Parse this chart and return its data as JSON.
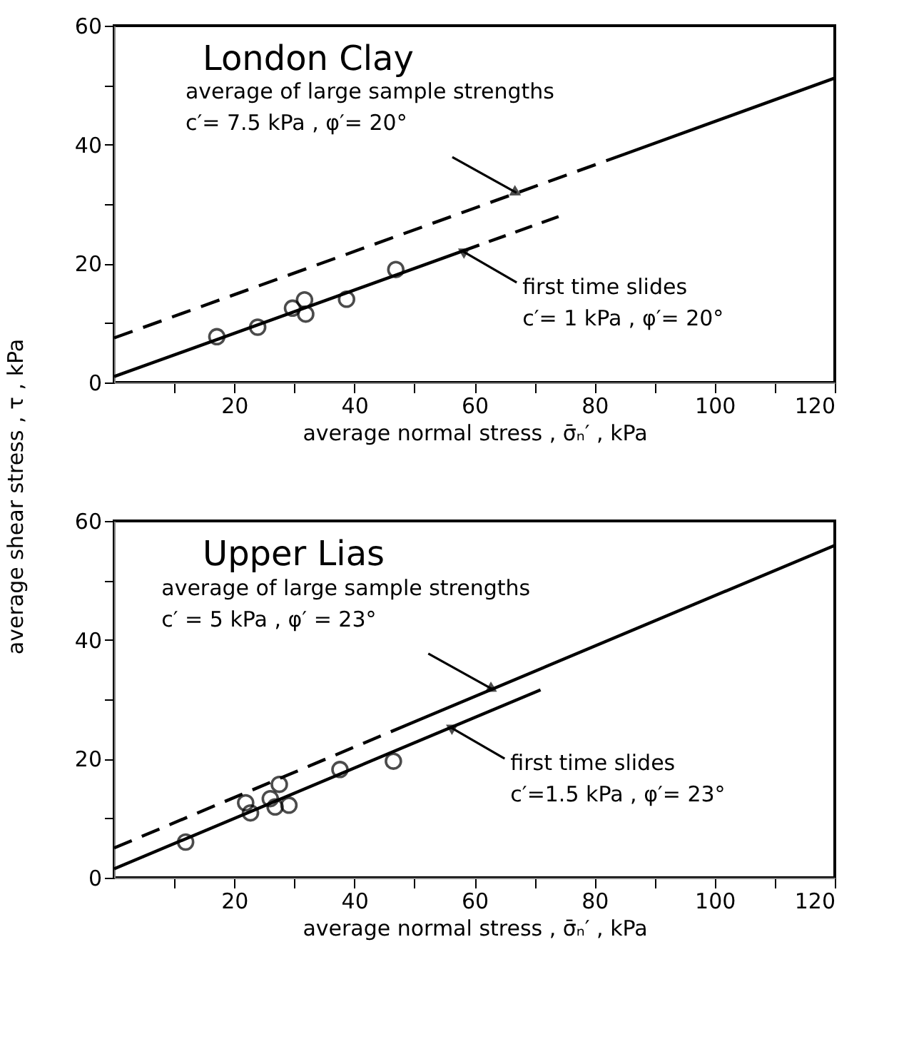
{
  "chart_data": [
    {
      "type": "line",
      "title": "London Clay",
      "xlabel": "average normal stress , σ̄ₙ′ , kPa",
      "ylabel": "average shear stress , τ , kPa",
      "xlim": [
        0,
        120
      ],
      "ylim": [
        0,
        60
      ],
      "xticks": [
        {
          "value": 10,
          "label": null
        },
        20,
        {
          "value": 30,
          "label": null
        },
        40,
        {
          "value": 50,
          "label": null
        },
        60,
        {
          "value": 70,
          "label": null
        },
        80,
        {
          "value": 90,
          "label": null
        },
        100,
        {
          "value": 110,
          "label": null
        },
        120
      ],
      "yticks": [
        0,
        {
          "value": 10,
          "label": null
        },
        20,
        {
          "value": 30,
          "label": null
        },
        40,
        {
          "value": 50,
          "label": null
        },
        60
      ],
      "grid": false,
      "series": [
        {
          "line_style": [
            "dashed",
            "solid"
          ],
          "color": "#000000",
          "x": [
            0,
            85,
            120
          ],
          "values": [
            7.5,
            38.4,
            51.2
          ]
        },
        {
          "line_style": [
            "solid",
            "dashed"
          ],
          "color": "#000000",
          "x": [
            0,
            58,
            74
          ],
          "values": [
            1,
            22.1,
            27.9
          ]
        },
        {
          "type": "scatter",
          "marker": "circle",
          "color": "#000000",
          "x": [
            17.1,
            23.9,
            29.7,
            31.7,
            31.9,
            38.7,
            46.9
          ],
          "values": [
            7.7,
            9.3,
            12.5,
            13.9,
            11.5,
            14.0,
            19.0
          ]
        }
      ],
      "annotations": [
        {
          "text": "average of large sample strengths\nc′= 7.5 kPa , φ′= 20°",
          "x": 67,
          "y": 31.9
        },
        {
          "text": "first time slides\nc′= 1 kPa , φ′= 20°",
          "x": 58,
          "y": 22.1
        }
      ]
    },
    {
      "type": "line",
      "title": "Upper Lias",
      "xlabel": "average normal stress , σ̄ₙ′ , kPa",
      "xlim": [
        0,
        120
      ],
      "ylim": [
        0,
        60
      ],
      "xticks": [
        {
          "value": 10,
          "label": null
        },
        20,
        {
          "value": 30,
          "label": null
        },
        40,
        {
          "value": 50,
          "label": null
        },
        60,
        {
          "value": 70,
          "label": null
        },
        80,
        {
          "value": 90,
          "label": null
        },
        100,
        {
          "value": 110,
          "label": null
        },
        120
      ],
      "yticks": [
        0,
        {
          "value": 10,
          "label": null
        },
        20,
        {
          "value": 30,
          "label": null
        },
        40,
        {
          "value": 50,
          "label": null
        },
        60
      ],
      "grid": false,
      "series": [
        {
          "line_style": [
            "dashed",
            "solid"
          ],
          "color": "#000000",
          "x": [
            0,
            49,
            120
          ],
          "values": [
            5,
            25.8,
            55.9
          ]
        },
        {
          "line_style": "solid",
          "color": "#000000",
          "x": [
            0,
            71
          ],
          "values": [
            1.5,
            31.6
          ]
        },
        {
          "type": "scatter",
          "marker": "circle",
          "color": "#000000",
          "x": [
            11.9,
            21.9,
            22.7,
            26.0,
            26.8,
            27.5,
            29.1,
            37.6,
            46.5
          ],
          "values": [
            6.0,
            12.6,
            10.9,
            13.3,
            11.9,
            15.7,
            12.2,
            18.2,
            19.6
          ]
        }
      ],
      "annotations": [
        {
          "text": "average of large sample strengths\nc′ = 5 kPa , φ′ = 23°",
          "x": 63,
          "y": 31.7
        },
        {
          "text": "first time slides\nc′=1.5 kPa , φ′= 23°",
          "x": 56,
          "y": 25.3
        }
      ]
    }
  ]
}
